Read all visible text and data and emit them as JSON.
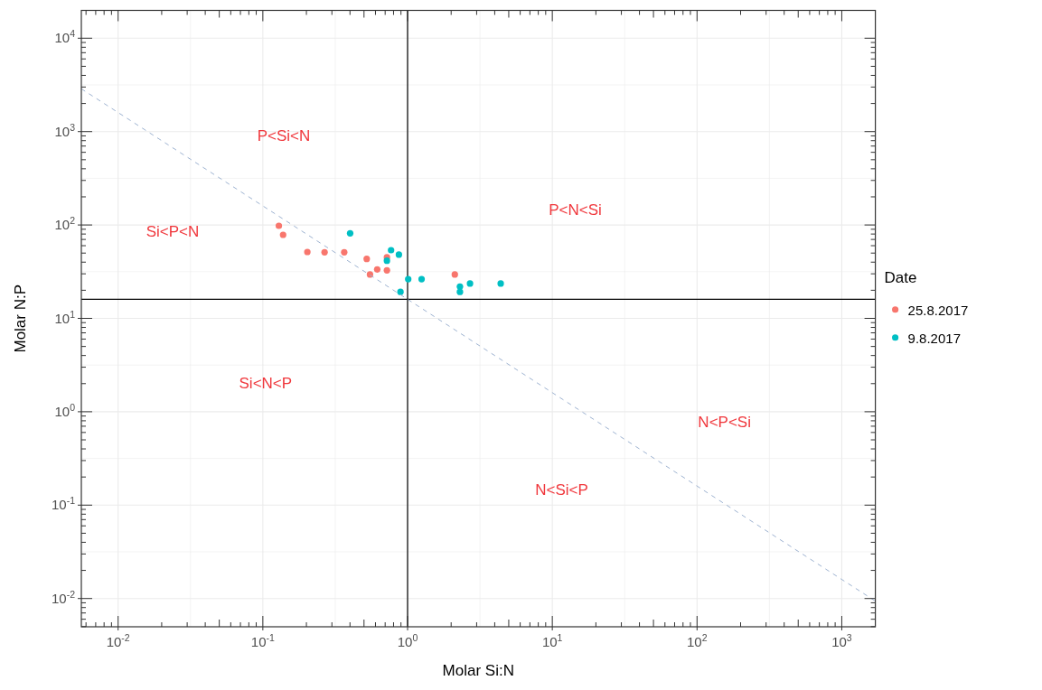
{
  "chart_data": {
    "type": "scatter",
    "xlabel": "Molar Si:N",
    "ylabel": "Molar N:P",
    "legend_title": "Date",
    "legend": "right",
    "grid": true,
    "log": "xy",
    "xlim": [
      0.00557,
      1706
    ],
    "ylim": [
      0.00498,
      19860
    ],
    "xticks": [
      {
        "value": 0.01,
        "label": "10$^{-2}$"
      },
      {
        "value": 0.1,
        "label": "10$^{-1}$"
      },
      {
        "value": 1,
        "label": "10$^{0}$"
      },
      {
        "value": 10,
        "label": "10$^{1}$"
      },
      {
        "value": 100,
        "label": "10$^{2}$"
      },
      {
        "value": 1000,
        "label": "10$^{3}$"
      }
    ],
    "yticks": [
      {
        "value": 0.01,
        "label": "10$^{-2}$"
      },
      {
        "value": 0.1,
        "label": "10$^{-1}$"
      },
      {
        "value": 1,
        "label": "10$^{0}$"
      },
      {
        "value": 10,
        "label": "10$^{1}$"
      },
      {
        "value": 100,
        "label": "10$^{2}$"
      },
      {
        "value": 1000,
        "label": "10$^{3}$"
      },
      {
        "value": 10000,
        "label": "10$^{4}$"
      }
    ],
    "ref_lines": [
      {
        "axis": "x",
        "value": 1,
        "color": "#000000"
      },
      {
        "axis": "y",
        "value": 16,
        "color": "#000000"
      }
    ],
    "series": [
      {
        "name": "25.8.2017",
        "color": "#f8766d",
        "marker": "circle",
        "x": [
          0.129,
          0.138,
          0.203,
          0.267,
          0.365,
          0.522,
          0.55,
          0.617,
          0.72,
          0.72,
          2.12
        ],
        "values": [
          98,
          78.5,
          51.4,
          51,
          51,
          43.3,
          29.5,
          33.4,
          32.7,
          45,
          29.5
        ]
      },
      {
        "name": "9.8.2017",
        "color": "#00bfc4",
        "marker": "circle",
        "x": [
          0.401,
          0.769,
          0.871,
          0.72,
          0.893,
          1.01,
          1.25,
          2.3,
          2.3,
          2.7,
          4.4
        ],
        "values": [
          81.5,
          53.7,
          48.1,
          41.4,
          19.2,
          26.3,
          26.3,
          21.9,
          19.2,
          23.6,
          23.6
        ]
      },
      {
        "type": "line",
        "color": "#9eb3d1",
        "line_style": "dashed",
        "x": [
          0.00557,
          1706
        ],
        "values": [
          2872,
          0.00938
        ]
      }
    ],
    "annotations": [
      "P<Si<N",
      "Si<P<N",
      "P<N<Si",
      "Si<N<P",
      "N<P<Si",
      "N<Si<P"
    ]
  }
}
